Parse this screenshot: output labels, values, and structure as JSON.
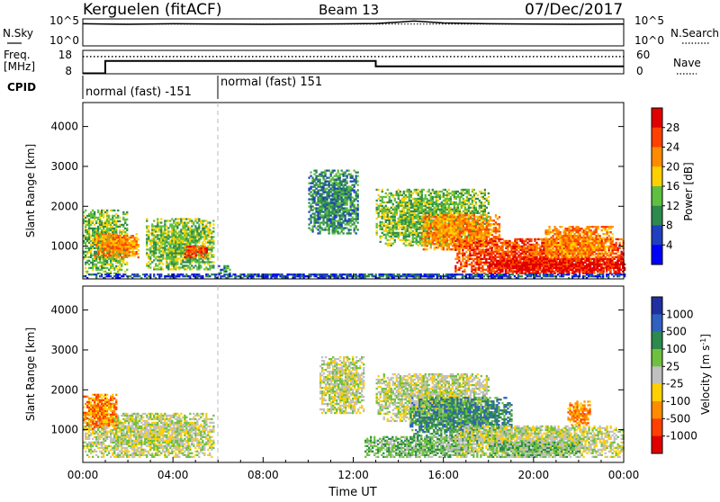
{
  "header": {
    "radar": "Kerguelen (fitACF)",
    "beam": "Beam 13",
    "date": "07/Dec/2017"
  },
  "panels": {
    "nsky_label": "N.Sky",
    "nsearch_label": "N.Search",
    "freq_label_top": "Freq.",
    "freq_label_bottom": "[MHz]",
    "nave_label": "Nave",
    "cpid_label": "CPID",
    "nsky_ticks": [
      "10^5",
      "10^0"
    ],
    "nsearch_ticks": [
      "10^5",
      "10^0"
    ],
    "freq_ticks": [
      "18",
      "8"
    ],
    "nave_ticks": [
      "60",
      "0"
    ]
  },
  "cpid": {
    "segments": [
      {
        "label": "normal (fast) -151",
        "start_hour": 0,
        "end_hour": 6
      },
      {
        "label": "normal (fast) 151",
        "start_hour": 6,
        "end_hour": 24
      }
    ]
  },
  "colors": {
    "power": [
      "#0000ff",
      "#2040c0",
      "#2d8a4e",
      "#5fbf40",
      "#ffd000",
      "#ff8c00",
      "#ff4000",
      "#e00000"
    ],
    "velocity": [
      "#2030a0",
      "#3060c0",
      "#2d8a4e",
      "#70c040",
      "#c0c0c0",
      "#ffd000",
      "#ff8c00",
      "#ff4000",
      "#e00000"
    ]
  },
  "chart_data": [
    {
      "type": "line",
      "name": "N.Sky / N.Search",
      "x_hours": [
        0,
        2,
        4,
        6,
        8,
        10,
        12,
        13,
        14,
        14.7,
        16,
        18,
        20,
        22,
        24
      ],
      "nsky_fraction": [
        0.82,
        0.8,
        0.82,
        0.81,
        0.8,
        0.81,
        0.82,
        0.83,
        0.88,
        0.92,
        0.85,
        0.82,
        0.81,
        0.8,
        0.81
      ],
      "nsearch_fraction": [
        0.82,
        0.81,
        0.81,
        0.81,
        0.81,
        0.81,
        0.81,
        0.81,
        0.81,
        0.81,
        0.81,
        0.81,
        0.81,
        0.81,
        0.81
      ]
    },
    {
      "type": "line",
      "name": "Freq / Nave",
      "freq_ticks": [
        8,
        18
      ],
      "nave_ticks": [
        0,
        60
      ],
      "freq_steps": [
        [
          0,
          8.2
        ],
        [
          1,
          8.2
        ],
        [
          1,
          13.5
        ],
        [
          13,
          13.5
        ],
        [
          13,
          11.2
        ],
        [
          24,
          11.2
        ]
      ],
      "nave_level": 44
    },
    {
      "type": "heatmap",
      "name": "Power",
      "xlabel": "",
      "ylabel": "Slant Range [km]",
      "xlim": [
        0,
        24
      ],
      "ylim": [
        180,
        4600
      ],
      "y_ticks": [
        1000,
        2000,
        3000,
        4000
      ],
      "x_ticks": [
        "00:00",
        "04:00",
        "08:00",
        "12:00",
        "16:00",
        "20:00",
        "00:00"
      ],
      "colorbar_title": "Power [dB]",
      "colorbar_ticks": [
        "28",
        "24",
        "20",
        "16",
        "12",
        "8",
        "4"
      ],
      "regions": [
        {
          "hours": [
            0,
            2.0
          ],
          "range": [
            300,
            1900
          ],
          "level": 3
        },
        {
          "hours": [
            0.5,
            2.5
          ],
          "range": [
            700,
            1300
          ],
          "level": 5
        },
        {
          "hours": [
            2.8,
            5.8
          ],
          "range": [
            400,
            1700
          ],
          "level": 3
        },
        {
          "hours": [
            4.5,
            5.5
          ],
          "range": [
            700,
            1000
          ],
          "level": 6
        },
        {
          "hours": [
            6.0,
            6.5
          ],
          "range": [
            300,
            500
          ],
          "level": 2
        },
        {
          "hours": [
            10.0,
            12.2
          ],
          "range": [
            1300,
            2900
          ],
          "level": 2
        },
        {
          "hours": [
            13.0,
            18.0
          ],
          "range": [
            1000,
            2400
          ],
          "level": 3
        },
        {
          "hours": [
            15.0,
            18.5
          ],
          "range": [
            900,
            1800
          ],
          "level": 5
        },
        {
          "hours": [
            16.5,
            24
          ],
          "range": [
            300,
            1200
          ],
          "level": 6
        },
        {
          "hours": [
            18.0,
            24
          ],
          "range": [
            300,
            700
          ],
          "level": 7
        },
        {
          "hours": [
            20.5,
            23.5
          ],
          "range": [
            700,
            1500
          ],
          "level": 5
        },
        {
          "hours": [
            0,
            24
          ],
          "range": [
            180,
            300
          ],
          "level": 1
        }
      ]
    },
    {
      "type": "heatmap",
      "name": "Velocity",
      "xlabel": "Time UT",
      "ylabel": "Slant Range [km]",
      "xlim": [
        0,
        24
      ],
      "ylim": [
        180,
        4600
      ],
      "y_ticks": [
        1000,
        2000,
        3000,
        4000
      ],
      "x_ticks": [
        "00:00",
        "04:00",
        "08:00",
        "12:00",
        "16:00",
        "20:00",
        "00:00"
      ],
      "colorbar_title": "Velocity [m s^-1]",
      "colorbar_ticks": [
        "1000",
        "500",
        "100",
        "25",
        "-25",
        "-100",
        "-500",
        "-1000"
      ],
      "regions": [
        {
          "hours": [
            0,
            5.8
          ],
          "range": [
            300,
            1400
          ],
          "level": 4
        },
        {
          "hours": [
            0,
            1.5
          ],
          "range": [
            1000,
            1900
          ],
          "level": 6
        },
        {
          "hours": [
            10.5,
            12.5
          ],
          "range": [
            1400,
            2800
          ],
          "level": 4
        },
        {
          "hours": [
            13.0,
            18.0
          ],
          "range": [
            1200,
            2400
          ],
          "level": 4
        },
        {
          "hours": [
            14.5,
            19.0
          ],
          "range": [
            700,
            1800
          ],
          "level": 2
        },
        {
          "hours": [
            12.5,
            17.5
          ],
          "range": [
            300,
            800
          ],
          "level": 3
        },
        {
          "hours": [
            16.5,
            24
          ],
          "range": [
            300,
            1100
          ],
          "level": 4
        },
        {
          "hours": [
            18.0,
            22.0
          ],
          "range": [
            300,
            700
          ],
          "level": 3
        },
        {
          "hours": [
            21.5,
            22.5
          ],
          "range": [
            1100,
            1700
          ],
          "level": 6
        }
      ]
    }
  ]
}
